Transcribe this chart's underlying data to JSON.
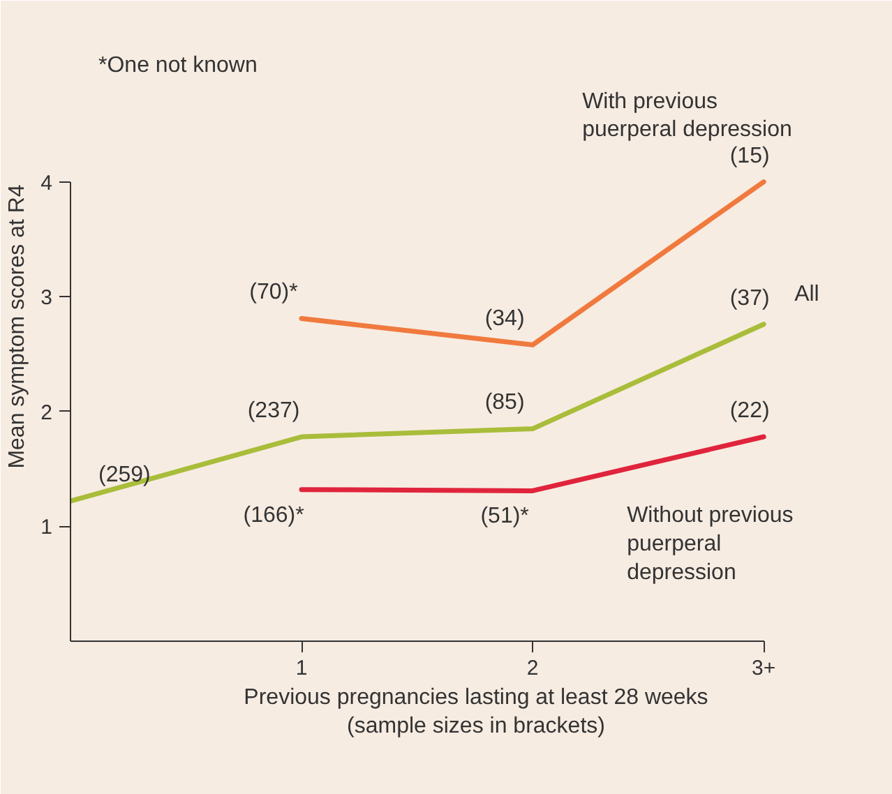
{
  "chart_data": {
    "type": "line",
    "xlabel": "Previous pregnancies lasting at least 28 weeks\n(sample sizes in brackets)",
    "ylabel": "Mean symptom scores at R4",
    "x": [
      0,
      1,
      2,
      3
    ],
    "xlim": [
      0,
      3
    ],
    "xticks": [
      1,
      2,
      {
        "value": 3,
        "label": "3+"
      }
    ],
    "ylim": [
      0,
      4
    ],
    "yticks": [
      1,
      2,
      3,
      4
    ],
    "grid": false,
    "legend": false,
    "marker": "none",
    "line_style": "solid",
    "series": [
      {
        "name": "With previous puerperal depression",
        "color": "#f07a3e",
        "values": [
          null,
          2.81,
          2.58,
          4.0
        ]
      },
      {
        "name": "All",
        "color": "#a9bd3a",
        "values": [
          1.22,
          1.78,
          1.85,
          2.76
        ]
      },
      {
        "name": "Without previous puerperal depression",
        "color": "#e0243c",
        "values": [
          null,
          1.32,
          1.31,
          1.78
        ]
      }
    ],
    "annotations": [
      "*One not known",
      {
        "text": "(70)*",
        "x": 1,
        "y": 2.81
      },
      {
        "text": "(34)",
        "x": 2,
        "y": 2.58
      },
      {
        "text": "(15)",
        "x": 3,
        "y": 4.0
      },
      {
        "text": "(259)",
        "x": 0,
        "y": 1.22
      },
      {
        "text": "(237)",
        "x": 1,
        "y": 1.78
      },
      {
        "text": "(85)",
        "x": 2,
        "y": 1.85
      },
      {
        "text": "(37)",
        "x": 3,
        "y": 2.76
      },
      {
        "text": "(166)*",
        "x": 1,
        "y": 1.32
      },
      {
        "text": "(51)*",
        "x": 2,
        "y": 1.31
      },
      {
        "text": "(22)",
        "x": 3,
        "y": 1.78
      }
    ]
  }
}
